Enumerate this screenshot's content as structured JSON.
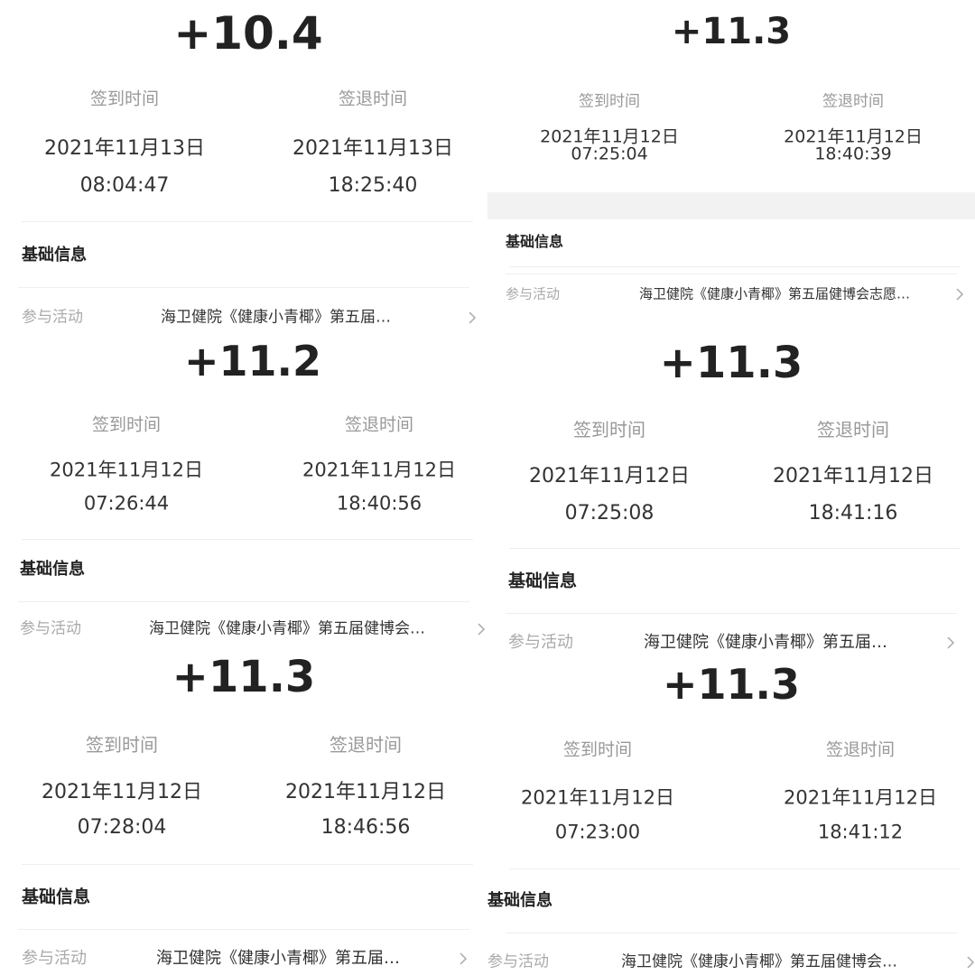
{
  "panels": [
    {
      "score": "+10.4",
      "checkin_label": "签到时间",
      "checkout_label": "签退时间",
      "checkin_date": "2021年11月13日",
      "checkin_time": "08:04:47",
      "checkout_date": "2021年11月13日",
      "checkout_time": "18:25:40",
      "section": "基础信息",
      "activity_label": "参与活动",
      "activity": "海卫健院《健康小青椰》第五届…"
    },
    {
      "score": "+11.3",
      "checkin_label": "签到时间",
      "checkout_label": "签退时间",
      "checkin_date": "2021年11月12日",
      "checkin_time": "07:25:04",
      "checkout_date": "2021年11月12日",
      "checkout_time": "18:40:39",
      "section": "基础信息",
      "activity_label": "参与活动",
      "activity": "海卫健院《健康小青椰》第五届健博会志愿…"
    },
    {
      "score": "+11.2",
      "checkin_label": "签到时间",
      "checkout_label": "签退时间",
      "checkin_date": "2021年11月12日",
      "checkin_time": "07:26:44",
      "checkout_date": "2021年11月12日",
      "checkout_time": "18:40:56",
      "section": "基础信息",
      "activity_label": "参与活动",
      "activity": "海卫健院《健康小青椰》第五届健博会…"
    },
    {
      "score": "+11.3",
      "checkin_label": "签到时间",
      "checkout_label": "签退时间",
      "checkin_date": "2021年11月12日",
      "checkin_time": "07:25:08",
      "checkout_date": "2021年11月12日",
      "checkout_time": "18:41:16",
      "section": "基础信息",
      "activity_label": "参与活动",
      "activity": "海卫健院《健康小青椰》第五届…"
    },
    {
      "score": "+11.3",
      "checkin_label": "签到时间",
      "checkout_label": "签退时间",
      "checkin_date": "2021年11月12日",
      "checkin_time": "07:28:04",
      "checkout_date": "2021年11月12日",
      "checkout_time": "18:46:56",
      "section": "基础信息",
      "activity_label": "参与活动",
      "activity": "海卫健院《健康小青椰》第五届…"
    },
    {
      "score": "+11.3",
      "checkin_label": "签到时间",
      "checkout_label": "签退时间",
      "checkin_date": "2021年11月12日",
      "checkin_time": "07:23:00",
      "checkout_date": "2021年11月12日",
      "checkout_time": "18:41:12",
      "section": "基础信息",
      "activity_label": "参与活动",
      "activity": "海卫健院《健康小青椰》第五届健博会…"
    }
  ]
}
